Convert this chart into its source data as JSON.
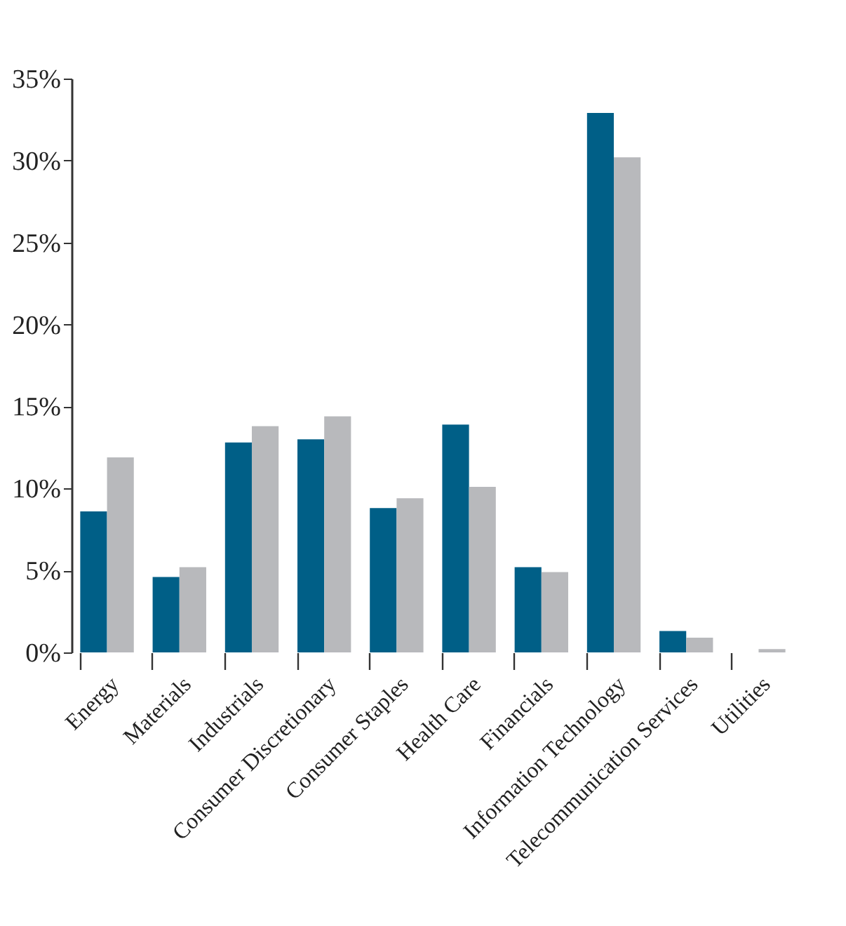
{
  "chart_data": {
    "type": "bar",
    "categories": [
      "Energy",
      "Materials",
      "Industrials",
      "Consumer Discretionary",
      "Consumer Staples",
      "Health Care",
      "Financials",
      "Information Technology",
      "Telecommunication Services",
      "Utilities"
    ],
    "series": [
      {
        "color": "#005f87",
        "values": [
          8.6,
          4.6,
          12.8,
          13.0,
          8.8,
          13.9,
          5.2,
          32.9,
          1.3,
          0
        ]
      },
      {
        "color": "#b8b9bc",
        "values": [
          11.9,
          5.2,
          13.8,
          14.4,
          9.4,
          10.1,
          4.9,
          30.2,
          0.9,
          0.2
        ]
      }
    ],
    "ylim": [
      0,
      35
    ],
    "yticks": [
      {
        "value": 0,
        "label": "0%"
      },
      {
        "value": 5,
        "label": "5%"
      },
      {
        "value": 10,
        "label": "10%"
      },
      {
        "value": 15,
        "label": "15%"
      },
      {
        "value": 20,
        "label": "20%"
      },
      {
        "value": 25,
        "label": "25%"
      },
      {
        "value": 30,
        "label": "30%"
      },
      {
        "value": 35,
        "label": "35%"
      }
    ],
    "grid": false,
    "legend": false
  }
}
